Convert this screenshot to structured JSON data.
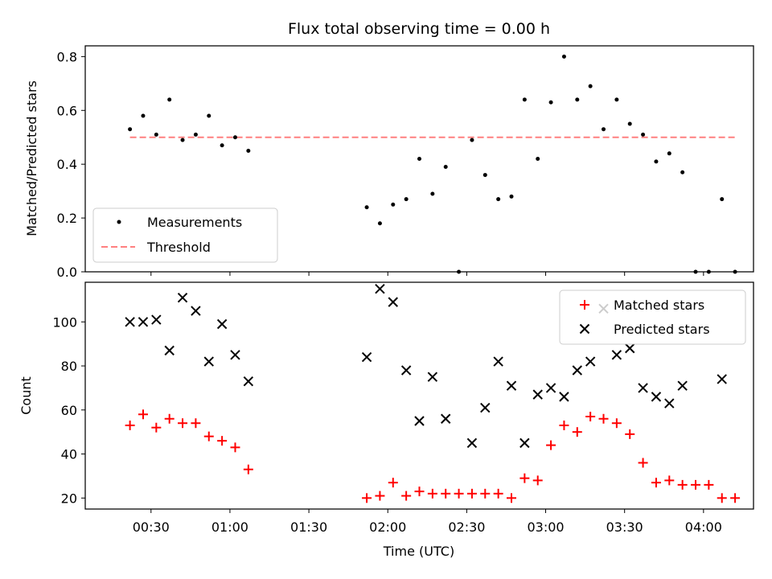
{
  "chart_data": [
    {
      "type": "scatter",
      "title": "Flux total observing time = 0.00 h",
      "xlabel": "",
      "ylabel": "Matched/Predicted stars",
      "ylim": [
        0,
        0.84
      ],
      "xlim": [
        "00:05",
        "04:19"
      ],
      "yticks": [
        "0.0",
        "0.2",
        "0.4",
        "0.6",
        "0.8"
      ],
      "ytick_values": [
        0,
        0.2,
        0.4,
        0.6,
        0.8
      ],
      "legend_position": "lower-left",
      "threshold": {
        "name": "Threshold",
        "y": 0.5,
        "x_start": "00:22",
        "x_end": "04:13",
        "color": "#ff8080"
      },
      "series": [
        {
          "name": "Measurements",
          "color": "#000000",
          "marker": "dot",
          "x": [
            "00:22",
            "00:27",
            "00:32",
            "00:37",
            "00:42",
            "00:47",
            "00:52",
            "00:57",
            "01:02",
            "01:07",
            "01:52",
            "01:57",
            "02:02",
            "02:07",
            "02:12",
            "02:17",
            "02:22",
            "02:27",
            "02:32",
            "02:37",
            "02:42",
            "02:47",
            "02:52",
            "02:57",
            "03:02",
            "03:07",
            "03:12",
            "03:17",
            "03:22",
            "03:27",
            "03:32",
            "03:37",
            "03:42",
            "03:47",
            "03:52",
            "03:57",
            "04:02",
            "04:07",
            "04:12"
          ],
          "y": [
            0.53,
            0.58,
            0.51,
            0.64,
            0.49,
            0.51,
            0.58,
            0.47,
            0.5,
            0.45,
            0.24,
            0.18,
            0.25,
            0.27,
            0.42,
            0.29,
            0.39,
            0.0,
            0.49,
            0.36,
            0.27,
            0.28,
            0.64,
            0.42,
            0.63,
            0.8,
            0.64,
            0.69,
            0.53,
            0.64,
            0.55,
            0.51,
            0.41,
            0.44,
            0.37,
            0.0,
            0.0,
            0.27,
            0.0
          ]
        }
      ]
    },
    {
      "type": "scatter",
      "title": "",
      "xlabel": "Time (UTC)",
      "ylabel": "Count",
      "ylim": [
        15,
        118
      ],
      "xlim": [
        "00:05",
        "04:19"
      ],
      "yticks": [
        "20",
        "40",
        "60",
        "80",
        "100"
      ],
      "ytick_values": [
        20,
        40,
        60,
        80,
        100
      ],
      "xticks": [
        "00:30",
        "01:00",
        "01:30",
        "02:00",
        "02:30",
        "03:00",
        "03:30",
        "04:00"
      ],
      "xtick_values": [
        "00:30",
        "01:00",
        "01:30",
        "02:00",
        "02:30",
        "03:00",
        "03:30",
        "04:00"
      ],
      "legend_position": "upper-right",
      "series": [
        {
          "name": "Matched stars",
          "color": "#ff0000",
          "marker": "plus",
          "x": [
            "00:22",
            "00:27",
            "00:32",
            "00:37",
            "00:42",
            "00:47",
            "00:52",
            "00:57",
            "01:02",
            "01:07",
            "01:52",
            "01:57",
            "02:02",
            "02:07",
            "02:12",
            "02:17",
            "02:22",
            "02:27",
            "02:32",
            "02:37",
            "02:42",
            "02:47",
            "02:52",
            "02:57",
            "03:02",
            "03:07",
            "03:12",
            "03:17",
            "03:22",
            "03:27",
            "03:32",
            "03:37",
            "03:42",
            "03:47",
            "03:52",
            "03:57",
            "04:02",
            "04:07",
            "04:12"
          ],
          "y": [
            53,
            58,
            52,
            56,
            54,
            54,
            48,
            46,
            43,
            33,
            20,
            21,
            27,
            21,
            23,
            22,
            22,
            22,
            22,
            22,
            22,
            20,
            29,
            28,
            44,
            53,
            50,
            57,
            56,
            54,
            49,
            36,
            27,
            28,
            26,
            26,
            26,
            20,
            20
          ]
        },
        {
          "name": "Predicted stars",
          "color": "#000000",
          "marker": "x",
          "x": [
            "00:22",
            "00:27",
            "00:32",
            "00:37",
            "00:42",
            "00:47",
            "00:52",
            "00:57",
            "01:02",
            "01:07",
            "01:52",
            "01:57",
            "02:02",
            "02:07",
            "02:12",
            "02:17",
            "02:22",
            "02:32",
            "02:37",
            "02:42",
            "02:47",
            "02:52",
            "02:57",
            "03:02",
            "03:07",
            "03:12",
            "03:17",
            "03:22",
            "03:27",
            "03:32",
            "03:37",
            "03:42",
            "03:47",
            "03:52",
            "04:07"
          ],
          "y": [
            100,
            100,
            101,
            87,
            111,
            105,
            82,
            99,
            85,
            73,
            84,
            115,
            109,
            78,
            55,
            75,
            56,
            45,
            61,
            82,
            71,
            45,
            67,
            70,
            66,
            78,
            82,
            106,
            85,
            88,
            70,
            66,
            63,
            71,
            74
          ]
        }
      ]
    }
  ]
}
